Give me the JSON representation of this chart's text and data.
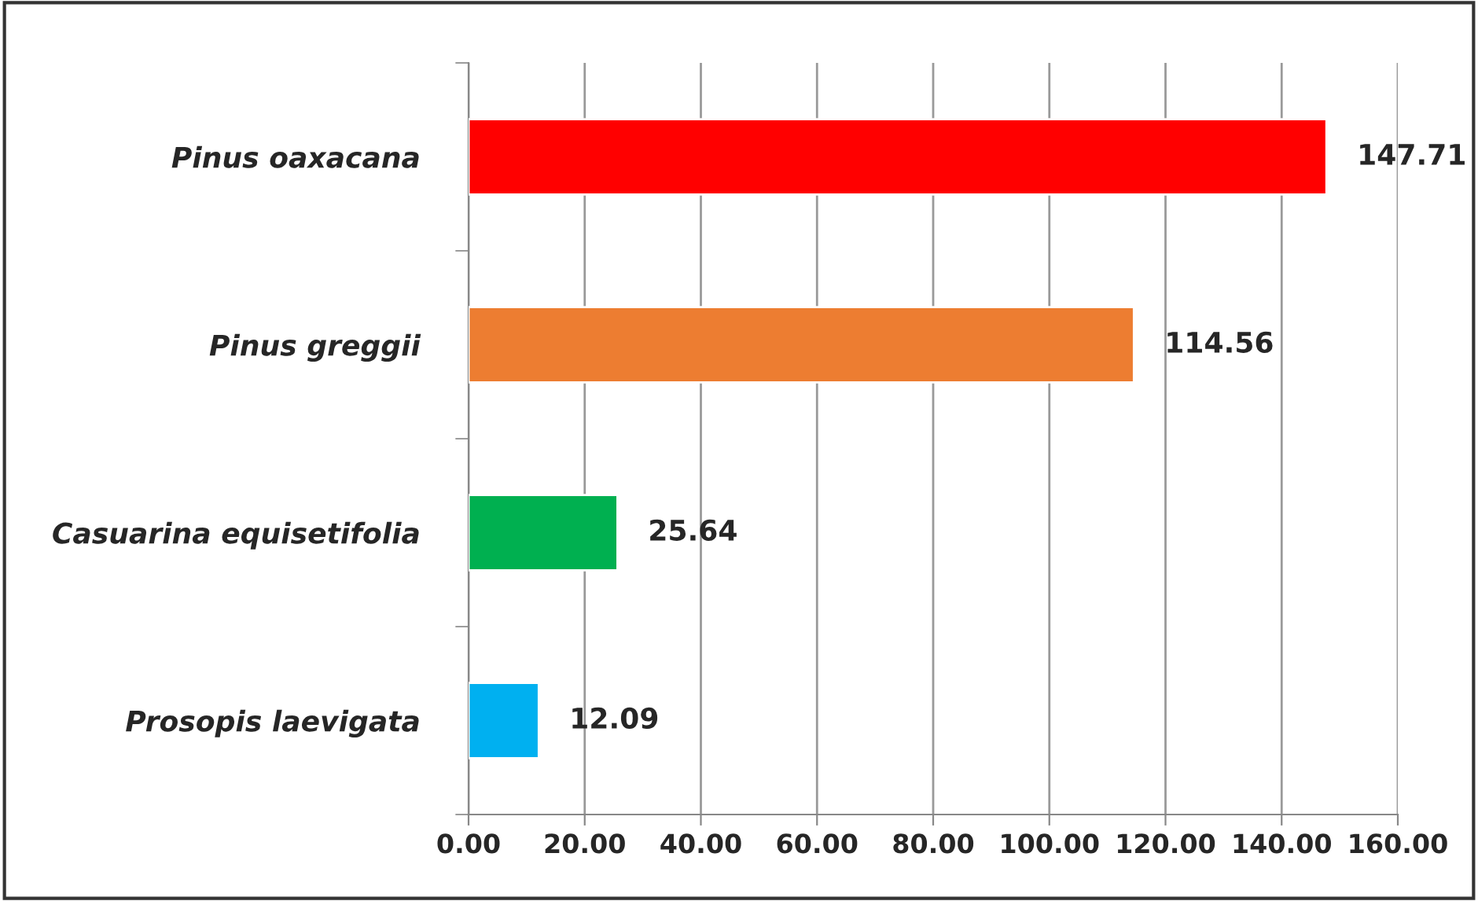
{
  "chart_data": {
    "type": "bar",
    "orientation": "horizontal",
    "categories": [
      "Pinus oaxacana",
      "Pinus greggii",
      "Casuarina equisetifolia",
      "Prosopis laevigata"
    ],
    "values": [
      147.71,
      114.56,
      25.64,
      12.09
    ],
    "colors": [
      "#ff0000",
      "#ed7d31",
      "#00b050",
      "#00b0f0"
    ],
    "xlim": [
      0,
      160
    ],
    "xticks": [
      {
        "value": 0,
        "label": "0.00"
      },
      {
        "value": 20,
        "label": "20.00"
      },
      {
        "value": 40,
        "label": "40.00"
      },
      {
        "value": 60,
        "label": "60.00"
      },
      {
        "value": 80,
        "label": "80.00"
      },
      {
        "value": 100,
        "label": "100.00"
      },
      {
        "value": 120,
        "label": "120.00"
      },
      {
        "value": 140,
        "label": "140.00"
      },
      {
        "value": 160,
        "label": "160.00"
      }
    ],
    "grid": "x",
    "data_labels": true
  }
}
